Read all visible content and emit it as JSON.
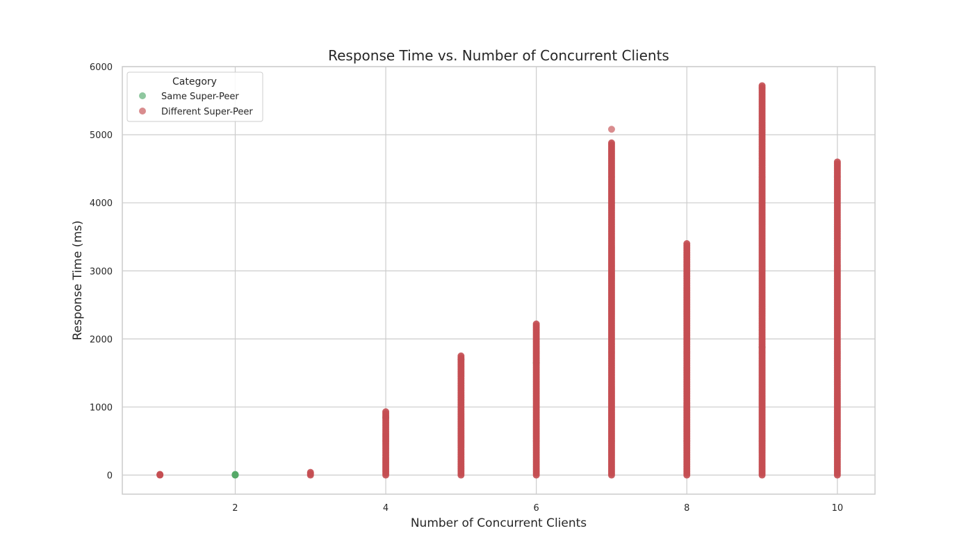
{
  "chart_data": {
    "type": "scatter",
    "title": "Response Time vs. Number of Concurrent Clients",
    "xlabel": "Number of Concurrent Clients",
    "ylabel": "Response Time (ms)",
    "xlim": [
      0.5,
      10.5
    ],
    "ylim": [
      -280,
      6000
    ],
    "xticks": [
      2,
      4,
      6,
      8,
      10
    ],
    "yticks": [
      0,
      1000,
      2000,
      3000,
      4000,
      5000,
      6000
    ],
    "grid": true,
    "legend": {
      "title": "Category",
      "placement": "top-left"
    },
    "series": [
      {
        "name": "Same Super-Peer",
        "color": "#55a868",
        "legend_color": "#8fc79f",
        "points": [
          {
            "x": 2,
            "y": 0
          },
          {
            "x": 2,
            "y": 5
          },
          {
            "x": 2,
            "y": 10
          },
          {
            "x": 4,
            "y": 850
          },
          {
            "x": 5,
            "y": 1700
          },
          {
            "x": 6,
            "y": 1650
          },
          {
            "x": 9,
            "y": 1880
          }
        ]
      },
      {
        "name": "Different Super-Peer",
        "color": "#c44e52",
        "legend_color": "#d98c8e",
        "ranges": [
          {
            "x": 1,
            "ymin": 0,
            "ymax": 10
          },
          {
            "x": 3,
            "ymin": 0,
            "ymax": 40
          },
          {
            "x": 4,
            "ymin": 0,
            "ymax": 930
          },
          {
            "x": 5,
            "ymin": 0,
            "ymax": 1750
          },
          {
            "x": 6,
            "ymin": 0,
            "ymax": 2220
          },
          {
            "x": 7,
            "ymin": 0,
            "ymax": 4880
          },
          {
            "x": 8,
            "ymin": 0,
            "ymax": 3400
          },
          {
            "x": 9,
            "ymin": 0,
            "ymax": 5720
          },
          {
            "x": 10,
            "ymin": 0,
            "ymax": 4600
          }
        ],
        "outliers": [
          {
            "x": 7,
            "y": 5080
          }
        ]
      }
    ]
  }
}
